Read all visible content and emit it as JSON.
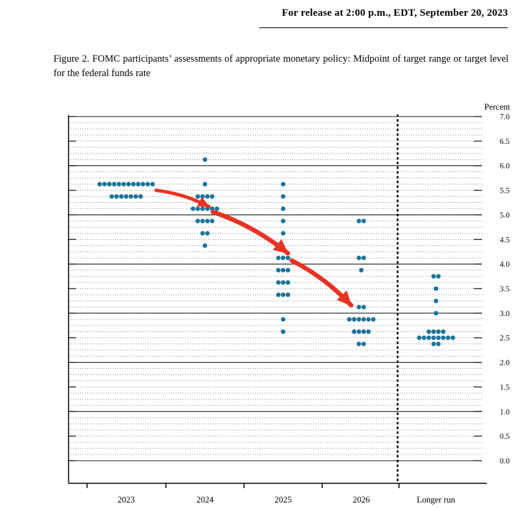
{
  "header": {
    "release_line": "For release at 2:00 p.m., EDT, September 20, 2023"
  },
  "figure_caption": "Figure 2.  FOMC participants’ assessments of appropriate monetary policy:  Midpoint of target range or target level for the federal funds rate",
  "chart_data": {
    "type": "scatter",
    "subtype": "fomc-dot-plot",
    "title": "FOMC participants’ assessments of appropriate monetary policy",
    "ylabel": "Percent",
    "ylim": [
      0.0,
      7.0
    ],
    "ytick_labels": [
      "7.0",
      "6.5",
      "6.0",
      "5.5",
      "5.0",
      "4.5",
      "4.0",
      "3.5",
      "3.0",
      "2.5",
      "2.0",
      "1.5",
      "1.0",
      "0.5",
      "0.0"
    ],
    "grid": {
      "solid_at_integers": true,
      "dotted_step": 0.125,
      "on": true
    },
    "categories": [
      "2023",
      "2024",
      "2025",
      "2026",
      "Longer run"
    ],
    "separator_after_index": 3,
    "dot_color": "#1d7499",
    "arrow_color": "#e93223",
    "distributions": [
      {
        "category": "2023",
        "dots": [
          {
            "rate": 5.625,
            "count": 12
          },
          {
            "rate": 5.375,
            "count": 7
          }
        ]
      },
      {
        "category": "2024",
        "dots": [
          {
            "rate": 6.125,
            "count": 1
          },
          {
            "rate": 5.625,
            "count": 1
          },
          {
            "rate": 5.375,
            "count": 4
          },
          {
            "rate": 5.125,
            "count": 6
          },
          {
            "rate": 4.875,
            "count": 4
          },
          {
            "rate": 4.625,
            "count": 2
          },
          {
            "rate": 4.375,
            "count": 1
          }
        ]
      },
      {
        "category": "2025",
        "dots": [
          {
            "rate": 5.625,
            "count": 1
          },
          {
            "rate": 5.375,
            "count": 1
          },
          {
            "rate": 5.125,
            "count": 1
          },
          {
            "rate": 4.875,
            "count": 1
          },
          {
            "rate": 4.625,
            "count": 1
          },
          {
            "rate": 4.125,
            "count": 3
          },
          {
            "rate": 3.875,
            "count": 3
          },
          {
            "rate": 3.625,
            "count": 3
          },
          {
            "rate": 3.375,
            "count": 3
          },
          {
            "rate": 2.875,
            "count": 1
          },
          {
            "rate": 2.625,
            "count": 1
          }
        ]
      },
      {
        "category": "2026",
        "dots": [
          {
            "rate": 4.875,
            "count": 2
          },
          {
            "rate": 4.125,
            "count": 2
          },
          {
            "rate": 3.875,
            "count": 1
          },
          {
            "rate": 3.125,
            "count": 2
          },
          {
            "rate": 2.875,
            "count": 6
          },
          {
            "rate": 2.625,
            "count": 4
          },
          {
            "rate": 2.375,
            "count": 2
          }
        ]
      },
      {
        "category": "Longer run",
        "dots": [
          {
            "rate": 3.75,
            "count": 2
          },
          {
            "rate": 3.5,
            "count": 1
          },
          {
            "rate": 3.25,
            "count": 1
          },
          {
            "rate": 3.0,
            "count": 1
          },
          {
            "rate": 2.625,
            "count": 4
          },
          {
            "rate": 2.5,
            "count": 8
          },
          {
            "rate": 2.375,
            "count": 2
          }
        ]
      }
    ],
    "annotations": {
      "arrows": [
        {
          "from": {
            "cat": 0.38,
            "rate": 5.5
          },
          "to": {
            "cat": 1.05,
            "rate": 5.17
          }
        },
        {
          "from": {
            "cat": 1.1,
            "rate": 5.06
          },
          "to": {
            "cat": 2.06,
            "rate": 4.22
          }
        },
        {
          "from": {
            "cat": 2.11,
            "rate": 4.07
          },
          "to": {
            "cat": 2.87,
            "rate": 3.16
          }
        }
      ]
    }
  }
}
